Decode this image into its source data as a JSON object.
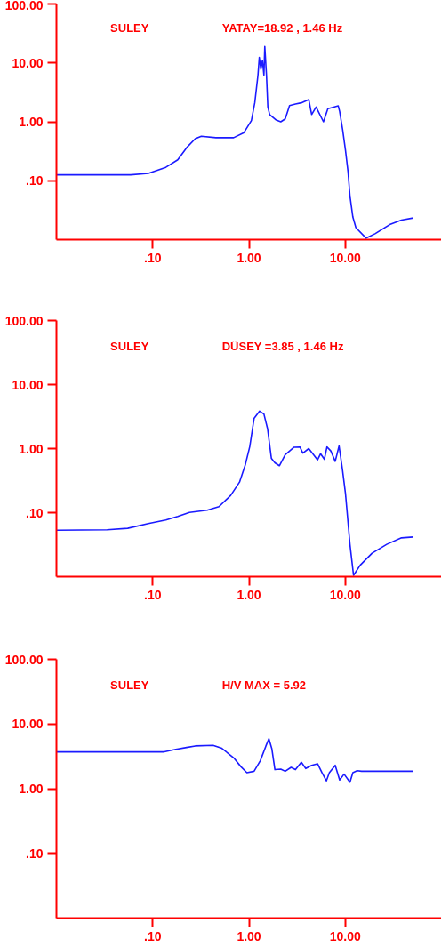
{
  "chart_data": [
    {
      "type": "line",
      "title": "SULEY",
      "subtitle": "YATAY=18.92 , 1.46 Hz",
      "log": "xy",
      "grid": false,
      "marker": "none",
      "line_style": "solid",
      "xlim": [
        0.01,
        100
      ],
      "ylim": [
        0.01,
        100
      ],
      "xticks": [
        {
          "value": 0.1,
          "label": ".10"
        },
        {
          "value": 1,
          "label": "1.00"
        },
        {
          "value": 10,
          "label": "10.00"
        }
      ],
      "yticks": [
        {
          "value": 0.1,
          "label": ".10"
        },
        {
          "value": 1,
          "label": "1.00"
        },
        {
          "value": 10,
          "label": "10.00"
        },
        {
          "value": 100,
          "label": "100.00"
        }
      ],
      "x": [
        0.0101,
        0.059,
        0.09,
        0.137,
        0.182,
        0.225,
        0.277,
        0.32,
        0.454,
        0.693,
        0.887,
        1.06,
        1.15,
        1.24,
        1.28,
        1.33,
        1.38,
        1.43,
        1.46,
        1.52,
        1.57,
        1.64,
        1.92,
        2.14,
        2.38,
        2.64,
        3.04,
        3.5,
        4.18,
        4.48,
        4.98,
        5.94,
        6.6,
        7.6,
        8.45,
        8.75,
        9.4,
        10.07,
        10.7,
        11.2,
        12.0,
        12.9,
        16.5,
        20.4,
        29,
        38.4,
        50.8
      ],
      "series": [
        {
          "color": "#1a1aff",
          "values": [
            0.126,
            0.126,
            0.133,
            0.169,
            0.226,
            0.363,
            0.516,
            0.567,
            0.537,
            0.537,
            0.655,
            1.05,
            2.12,
            6.2,
            12.4,
            7.8,
            11,
            6.2,
            18.92,
            6.2,
            1.78,
            1.33,
            1.07,
            1.0,
            1.12,
            1.89,
            2.0,
            2.1,
            2.39,
            1.33,
            1.78,
            1.0,
            1.67,
            1.78,
            1.87,
            1.5,
            0.736,
            0.324,
            0.141,
            0.055,
            0.0242,
            0.016,
            0.0106,
            0.0126,
            0.018,
            0.0215,
            0.0233
          ]
        }
      ]
    },
    {
      "type": "line",
      "title": "SULEY",
      "subtitle": "DÜSEY =3.85 , 1.46 Hz",
      "log": "xy",
      "grid": false,
      "marker": "none",
      "line_style": "solid",
      "xlim": [
        0.01,
        100
      ],
      "ylim": [
        0.01,
        100
      ],
      "xticks": [
        {
          "value": 0.1,
          "label": ".10"
        },
        {
          "value": 1,
          "label": "1.00"
        },
        {
          "value": 10,
          "label": "10.00"
        }
      ],
      "yticks": [
        {
          "value": 0.1,
          "label": ".10"
        },
        {
          "value": 1,
          "label": "1.00"
        },
        {
          "value": 10,
          "label": "10.00"
        },
        {
          "value": 100,
          "label": "100.00"
        }
      ],
      "x": [
        0.0101,
        0.0336,
        0.055,
        0.09,
        0.137,
        0.182,
        0.241,
        0.368,
        0.488,
        0.646,
        0.798,
        0.919,
        1.02,
        1.13,
        1.29,
        1.43,
        1.56,
        1.71,
        1.86,
        2.07,
        2.38,
        2.94,
        3.38,
        3.63,
        4.18,
        5.16,
        5.54,
        6.07,
        6.46,
        7.08,
        7.87,
        8.63,
        9.38,
        10.07,
        11.2,
        12.2,
        14.3,
        19,
        27,
        38.4,
        50.8
      ],
      "series": [
        {
          "color": "#1a1aff",
          "values": [
            0.0533,
            0.054,
            0.0569,
            0.0675,
            0.0766,
            0.087,
            0.101,
            0.109,
            0.124,
            0.186,
            0.3,
            0.569,
            1.08,
            2.96,
            3.85,
            3.47,
            2.04,
            0.703,
            0.6,
            0.54,
            0.8,
            1.05,
            1.06,
            0.85,
            1.0,
            0.667,
            0.83,
            0.68,
            1.06,
            0.92,
            0.632,
            1.1,
            0.459,
            0.196,
            0.032,
            0.0105,
            0.0151,
            0.0232,
            0.032,
            0.0404,
            0.0417
          ]
        }
      ]
    },
    {
      "type": "line",
      "title": "SULEY",
      "subtitle": "H/V MAX = 5.92",
      "log": "xy",
      "grid": false,
      "marker": "none",
      "line_style": "solid",
      "xlim": [
        0.01,
        100
      ],
      "ylim": [
        0.01,
        100
      ],
      "xticks": [
        {
          "value": 0.1,
          "label": ".10"
        },
        {
          "value": 1,
          "label": "1.00"
        },
        {
          "value": 10,
          "label": "10.00"
        }
      ],
      "yticks": [
        {
          "value": 0.1,
          "label": ".10"
        },
        {
          "value": 1,
          "label": "1.00"
        },
        {
          "value": 10,
          "label": "10.00"
        },
        {
          "value": 100,
          "label": "100.00"
        }
      ],
      "x": [
        0.0101,
        0.132,
        0.169,
        0.225,
        0.277,
        0.424,
        0.523,
        0.694,
        0.827,
        0.952,
        1.13,
        1.31,
        1.5,
        1.61,
        1.73,
        1.86,
        2.14,
        2.38,
        2.74,
        3.04,
        3.5,
        3.89,
        4.48,
        5.16,
        5.73,
        6.37,
        6.84,
        7.87,
        8.75,
        9.73,
        11.2,
        12.0,
        13.3,
        14.8,
        50.8
      ],
      "series": [
        {
          "color": "#1a1aff",
          "values": [
            3.71,
            3.71,
            4.03,
            4.34,
            4.58,
            4.68,
            4.21,
            3.0,
            2.18,
            1.77,
            1.86,
            2.7,
            4.58,
            5.92,
            4.12,
            1.97,
            2.01,
            1.86,
            2.14,
            1.97,
            2.56,
            2.05,
            2.3,
            2.43,
            1.77,
            1.32,
            1.77,
            2.3,
            1.36,
            1.68,
            1.26,
            1.77,
            1.9,
            1.86,
            1.86
          ]
        }
      ]
    }
  ]
}
